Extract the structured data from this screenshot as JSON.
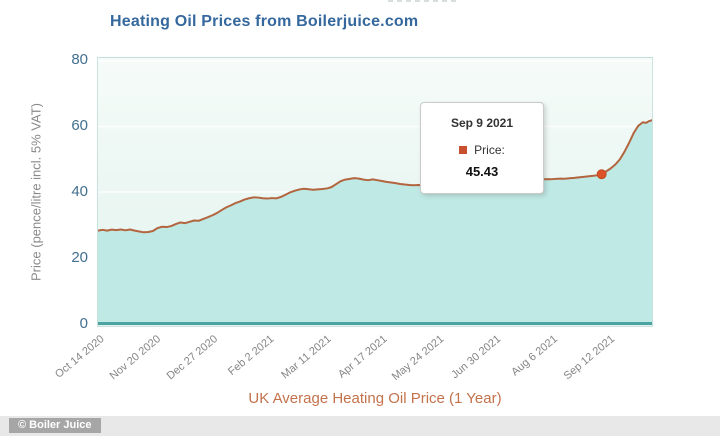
{
  "header": {
    "title": "Heating Oil Prices from Boilerjuice.com"
  },
  "colors": {
    "title_blue": "#35689d",
    "line": "#b2653e",
    "area_fill": "#bfe9e4",
    "axis_line": "#4aa3a1",
    "marker": "#dd5329",
    "subtitle_orange": "#c3724c",
    "y_label_blue": "#41708f",
    "gray_label": "#858585"
  },
  "tooltip": {
    "date": "Sep 9 2021",
    "series_label": "Price:",
    "value": "45.43",
    "marker_icon": "series-square-icon"
  },
  "footer": {
    "watermark": "© Boiler Juice"
  },
  "chart_data": {
    "type": "area",
    "title": "Heating Oil Prices from Boilerjuice.com",
    "subtitle": "UK Average Heating Oil Price (1 Year)",
    "xlabel": "",
    "ylabel": "Price (pence/litre incl. 5% VAT)",
    "ylim": [
      0,
      80
    ],
    "y_ticks": [
      0,
      20,
      40,
      60,
      80
    ],
    "grid": true,
    "legend_position": "tooltip-only",
    "x_range": [
      "2020-10-14",
      "2021-10-12"
    ],
    "x_tick_dates": [
      "2020-10-14",
      "2020-11-20",
      "2020-12-27",
      "2021-02-02",
      "2021-03-11",
      "2021-04-17",
      "2021-05-24",
      "2021-06-30",
      "2021-08-06",
      "2021-09-12"
    ],
    "x_tick_labels": [
      "Oct 14 2020",
      "Nov 20 2020",
      "Dec 27 2020",
      "Feb 2 2021",
      "Mar 11 2021",
      "Apr 17 2021",
      "May 24 2021",
      "Jun 30 2021",
      "Aug 6 2021",
      "Sep 12 2021"
    ],
    "highlight_point": {
      "date": "2021-09-09",
      "value": 45.43,
      "label": "Sep 9 2021"
    },
    "series": [
      {
        "name": "Price",
        "points": [
          [
            "2020-10-14",
            28.2
          ],
          [
            "2020-10-17",
            28.45
          ],
          [
            "2020-10-20",
            28.2
          ],
          [
            "2020-10-23",
            28.5
          ],
          [
            "2020-10-26",
            28.35
          ],
          [
            "2020-10-29",
            28.55
          ],
          [
            "2020-11-01",
            28.3
          ],
          [
            "2020-11-04",
            28.55
          ],
          [
            "2020-11-07",
            28.2
          ],
          [
            "2020-11-10",
            27.95
          ],
          [
            "2020-11-13",
            27.7
          ],
          [
            "2020-11-16",
            27.8
          ],
          [
            "2020-11-19",
            28.1
          ],
          [
            "2020-11-22",
            29.0
          ],
          [
            "2020-11-25",
            29.4
          ],
          [
            "2020-11-28",
            29.3
          ],
          [
            "2020-12-01",
            29.6
          ],
          [
            "2020-12-04",
            30.2
          ],
          [
            "2020-12-07",
            30.7
          ],
          [
            "2020-12-10",
            30.5
          ],
          [
            "2020-12-13",
            30.9
          ],
          [
            "2020-12-16",
            31.3
          ],
          [
            "2020-12-19",
            31.2
          ],
          [
            "2020-12-22",
            31.8
          ],
          [
            "2020-12-25",
            32.3
          ],
          [
            "2020-12-28",
            32.9
          ],
          [
            "2020-12-31",
            33.6
          ],
          [
            "2021-01-03",
            34.5
          ],
          [
            "2021-01-06",
            35.3
          ],
          [
            "2021-01-09",
            35.9
          ],
          [
            "2021-01-12",
            36.6
          ],
          [
            "2021-01-15",
            37.1
          ],
          [
            "2021-01-18",
            37.7
          ],
          [
            "2021-01-21",
            38.1
          ],
          [
            "2021-01-24",
            38.35
          ],
          [
            "2021-01-27",
            38.3
          ],
          [
            "2021-01-30",
            38.1
          ],
          [
            "2021-02-02",
            38.0
          ],
          [
            "2021-02-05",
            38.15
          ],
          [
            "2021-02-08",
            38.05
          ],
          [
            "2021-02-11",
            38.5
          ],
          [
            "2021-02-14",
            39.2
          ],
          [
            "2021-02-17",
            39.9
          ],
          [
            "2021-02-20",
            40.4
          ],
          [
            "2021-02-23",
            40.8
          ],
          [
            "2021-02-26",
            41.0
          ],
          [
            "2021-03-01",
            40.85
          ],
          [
            "2021-03-04",
            40.7
          ],
          [
            "2021-03-07",
            40.8
          ],
          [
            "2021-03-10",
            40.9
          ],
          [
            "2021-03-13",
            41.1
          ],
          [
            "2021-03-16",
            41.5
          ],
          [
            "2021-03-19",
            42.4
          ],
          [
            "2021-03-22",
            43.3
          ],
          [
            "2021-03-25",
            43.8
          ],
          [
            "2021-03-28",
            44.0
          ],
          [
            "2021-03-31",
            44.25
          ],
          [
            "2021-04-03",
            44.1
          ],
          [
            "2021-04-06",
            43.8
          ],
          [
            "2021-04-09",
            43.6
          ],
          [
            "2021-04-12",
            43.85
          ],
          [
            "2021-04-15",
            43.6
          ],
          [
            "2021-04-18",
            43.35
          ],
          [
            "2021-04-21",
            43.1
          ],
          [
            "2021-04-24",
            42.9
          ],
          [
            "2021-04-27",
            42.7
          ],
          [
            "2021-04-30",
            42.45
          ],
          [
            "2021-05-03",
            42.3
          ],
          [
            "2021-05-06",
            42.15
          ],
          [
            "2021-05-09",
            42.05
          ],
          [
            "2021-05-12",
            42.15
          ],
          [
            "2021-05-15",
            42.0
          ],
          [
            "2021-05-18",
            42.15
          ],
          [
            "2021-05-21",
            42.3
          ],
          [
            "2021-05-24",
            42.25
          ],
          [
            "2021-05-27",
            42.5
          ],
          [
            "2021-05-30",
            42.7
          ],
          [
            "2021-06-02",
            43.2
          ],
          [
            "2021-06-05",
            43.8
          ],
          [
            "2021-06-08",
            44.15
          ],
          [
            "2021-06-11",
            44.0
          ],
          [
            "2021-06-14",
            44.25
          ],
          [
            "2021-06-17",
            44.5
          ],
          [
            "2021-06-20",
            44.3
          ],
          [
            "2021-06-23",
            44.45
          ],
          [
            "2021-06-26",
            44.35
          ],
          [
            "2021-06-29",
            44.5
          ],
          [
            "2021-07-02",
            44.4
          ],
          [
            "2021-07-05",
            44.25
          ],
          [
            "2021-07-08",
            44.1
          ],
          [
            "2021-07-11",
            44.2
          ],
          [
            "2021-07-14",
            44.0
          ],
          [
            "2021-07-17",
            43.9
          ],
          [
            "2021-07-20",
            43.8
          ],
          [
            "2021-07-23",
            43.95
          ],
          [
            "2021-07-26",
            43.85
          ],
          [
            "2021-07-29",
            43.9
          ],
          [
            "2021-08-01",
            43.85
          ],
          [
            "2021-08-04",
            43.95
          ],
          [
            "2021-08-07",
            43.9
          ],
          [
            "2021-08-10",
            44.0
          ],
          [
            "2021-08-13",
            44.1
          ],
          [
            "2021-08-16",
            44.05
          ],
          [
            "2021-08-19",
            44.2
          ],
          [
            "2021-08-22",
            44.3
          ],
          [
            "2021-08-25",
            44.45
          ],
          [
            "2021-08-28",
            44.6
          ],
          [
            "2021-08-31",
            44.75
          ],
          [
            "2021-09-03",
            44.9
          ],
          [
            "2021-09-06",
            45.1
          ],
          [
            "2021-09-09",
            45.43
          ],
          [
            "2021-09-12",
            46.3
          ],
          [
            "2021-09-15",
            47.2
          ],
          [
            "2021-09-18",
            48.4
          ],
          [
            "2021-09-21",
            50.0
          ],
          [
            "2021-09-24",
            52.3
          ],
          [
            "2021-09-27",
            55.0
          ],
          [
            "2021-09-30",
            58.0
          ],
          [
            "2021-10-03",
            60.2
          ],
          [
            "2021-10-06",
            61.3
          ],
          [
            "2021-10-08",
            61.1
          ],
          [
            "2021-10-10",
            61.6
          ],
          [
            "2021-10-12",
            61.9
          ]
        ]
      }
    ]
  }
}
